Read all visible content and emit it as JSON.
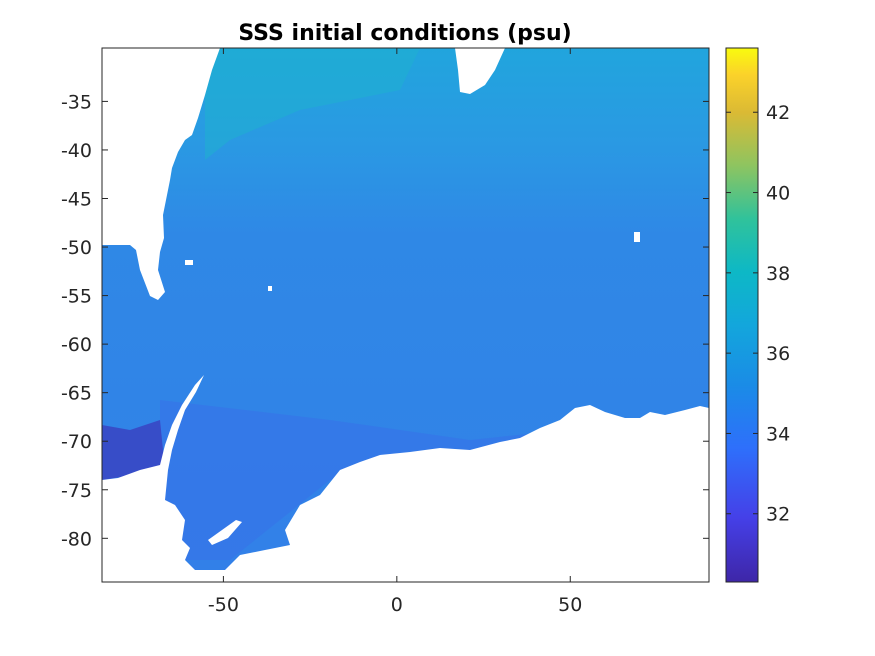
{
  "chart_data": {
    "type": "heatmap",
    "title": "SSS initial conditions (psu)",
    "xlabel": "",
    "ylabel": "",
    "xlim": [
      -85,
      90
    ],
    "ylim": [
      -84.5,
      -29.5
    ],
    "x_ticks": [
      -50,
      0,
      50
    ],
    "x_tick_labels": [
      "-50",
      "0",
      "50"
    ],
    "y_ticks": [
      -35,
      -40,
      -45,
      -50,
      -55,
      -60,
      -65,
      -70,
      -75,
      -80
    ],
    "y_tick_labels": [
      "-35",
      "-40",
      "-45",
      "-50",
      "-55",
      "-60",
      "-65",
      "-70",
      "-75",
      "-80"
    ],
    "colorbar": {
      "colormap": "parula",
      "range": [
        30.3,
        43.6
      ],
      "ticks": [
        32,
        34,
        36,
        38,
        40,
        42
      ],
      "tick_labels": [
        "32",
        "34",
        "36",
        "38",
        "40",
        "42"
      ]
    },
    "field_summary": {
      "open_ocean_typical_psu": 34,
      "north_west_coastal_max_psu": 36,
      "weddell_shelf_min_psu": 31
    }
  },
  "colors": {
    "land": "#ffffff",
    "ocean_typical": "#2f8fe6",
    "north_band": "#1aa6e0",
    "coastal_fresh": "#3b50d8",
    "weddell_shelf": "#3a2fa0"
  }
}
